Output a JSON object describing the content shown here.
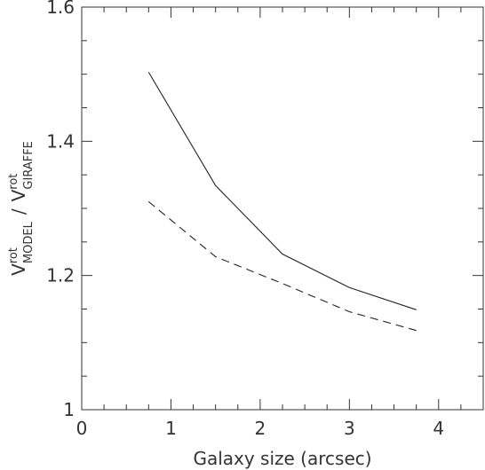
{
  "chart_data": {
    "type": "line",
    "xlabel": "Galaxy size (arcsec)",
    "ylabel": {
      "numerator_main": "V",
      "numerator_sup": "rot",
      "numerator_sub": "MODEL",
      "separator": "/",
      "denominator_main": "V",
      "denominator_sup": "rot",
      "denominator_sub": "GIRAFFE"
    },
    "xlim": [
      0,
      4.5
    ],
    "ylim": [
      1.0,
      1.6
    ],
    "x_ticks": [
      "0",
      "1",
      "2",
      "3",
      "4"
    ],
    "y_ticks": [
      "1",
      "1.2",
      "1.4",
      "1.6"
    ],
    "grid": false,
    "series": [
      {
        "style": "solid",
        "x": [
          0.75,
          1.5,
          2.25,
          3.0,
          3.75
        ],
        "y": [
          1.503,
          1.334,
          1.232,
          1.182,
          1.149
        ]
      },
      {
        "style": "dashed",
        "x": [
          0.75,
          1.5,
          2.25,
          3.0,
          3.75
        ],
        "y": [
          1.31,
          1.228,
          1.188,
          1.146,
          1.118
        ]
      }
    ]
  }
}
